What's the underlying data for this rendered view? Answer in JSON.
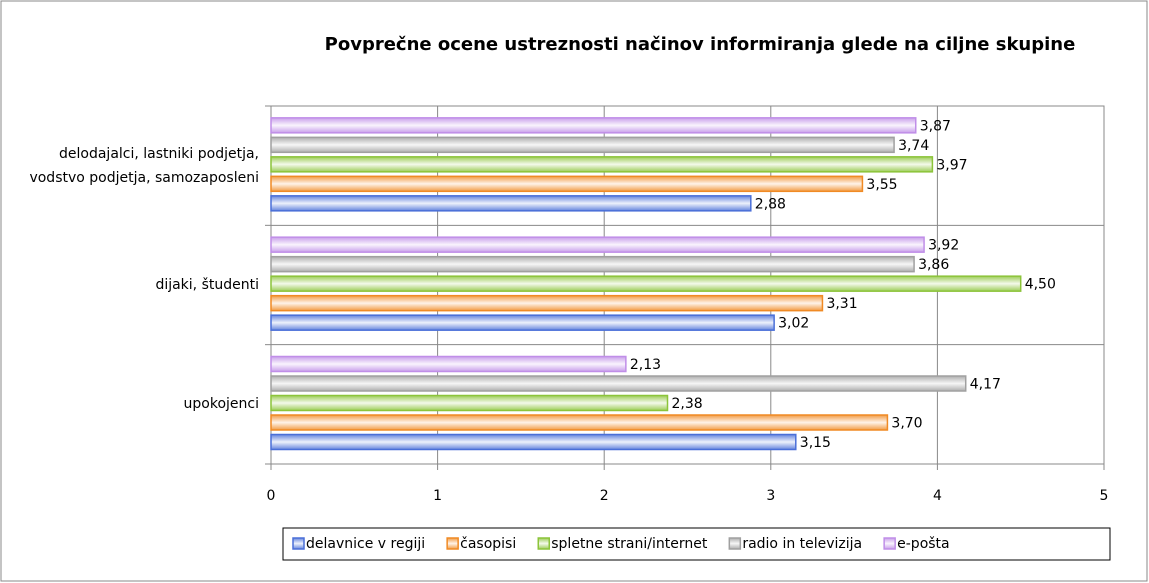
{
  "chart_data": {
    "type": "bar",
    "orientation": "horizontal",
    "title": "Povprečne ocene ustreznosti načinov informiranja glede na ciljne skupine",
    "categories": [
      "delodajalci, lastniki podjetja, vodstvo podjetja, samozaposleni",
      "dijaki, študenti",
      "upokojenci"
    ],
    "series": [
      {
        "name": "delavnice v regiji",
        "color": "#4a6fd8",
        "values": [
          2.88,
          3.02,
          3.15
        ],
        "value_labels": [
          "2,88",
          "3,02",
          "3,15"
        ]
      },
      {
        "name": "časopisi",
        "color": "#f08a24",
        "values": [
          3.55,
          3.31,
          3.7
        ],
        "value_labels": [
          "3,55",
          "3,31",
          "3,70"
        ]
      },
      {
        "name": "spletne strani/internet",
        "color": "#8cc43a",
        "values": [
          3.97,
          4.5,
          2.38
        ],
        "value_labels": [
          "3,97",
          "4,50",
          "2,38"
        ]
      },
      {
        "name": "radio in televizija",
        "color": "#a0a0a0",
        "values": [
          3.74,
          3.86,
          4.17
        ],
        "value_labels": [
          "3,74",
          "3,86",
          "4,17"
        ]
      },
      {
        "name": "e-pošta",
        "color": "#c08ee8",
        "values": [
          3.87,
          3.92,
          2.13
        ],
        "value_labels": [
          "3,87",
          "3,92",
          "2,13"
        ]
      }
    ],
    "xlim": [
      0,
      5
    ],
    "xticks": [
      0,
      1,
      2,
      3,
      4,
      5
    ],
    "grid": true,
    "legend": "bottom"
  }
}
